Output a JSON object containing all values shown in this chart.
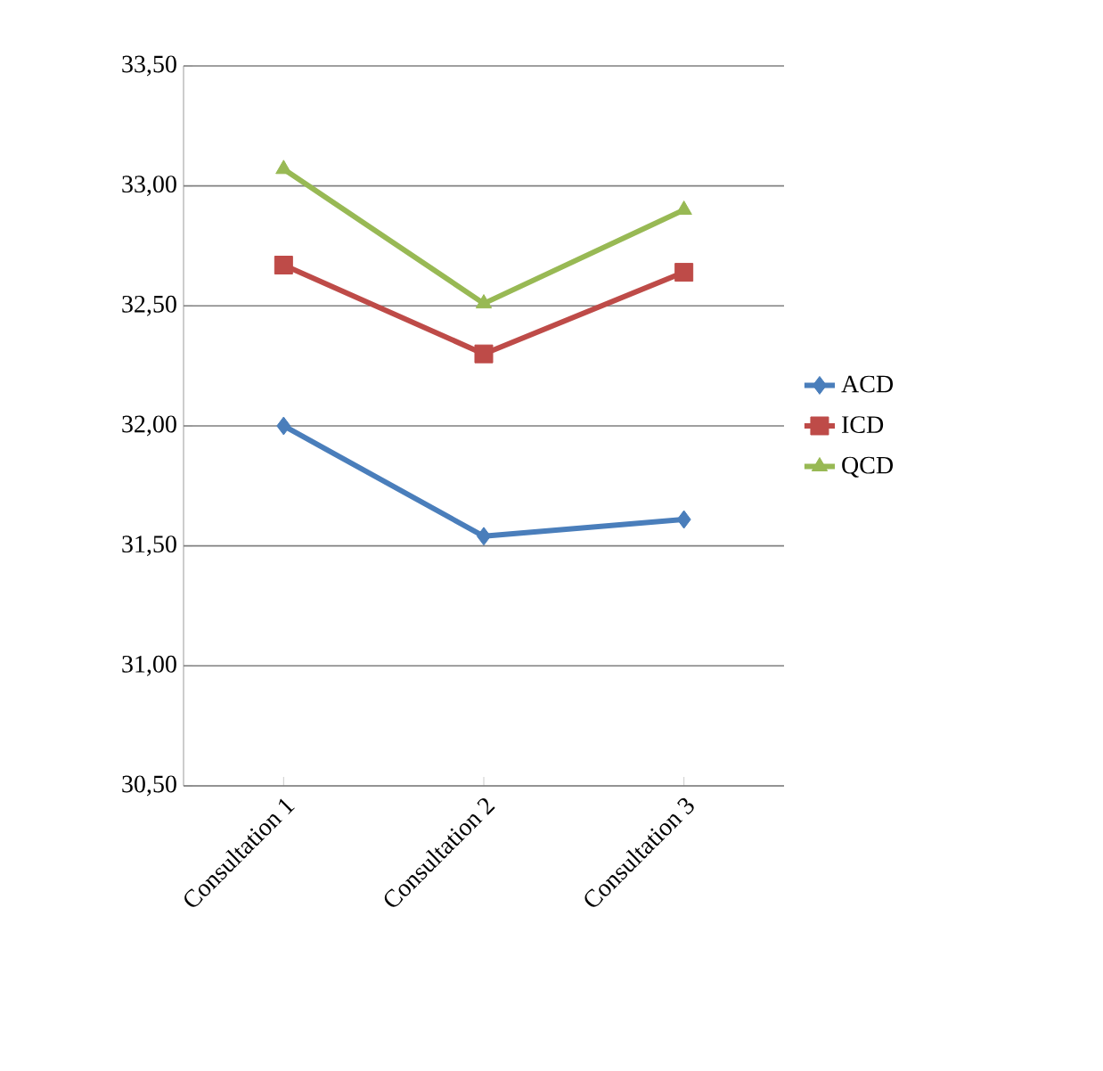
{
  "chart_data": {
    "type": "line",
    "categories": [
      "Consultation 1",
      "Consultation 2",
      "Consultation 3"
    ],
    "series": [
      {
        "name": "ACD",
        "color": "#4a7ebb",
        "marker": "diamond",
        "values": [
          32.0,
          31.54,
          31.61
        ]
      },
      {
        "name": "ICD",
        "color": "#be4b48",
        "marker": "square",
        "values": [
          32.67,
          32.3,
          32.64
        ]
      },
      {
        "name": "QCD",
        "color": "#98b954",
        "marker": "triangle",
        "values": [
          33.07,
          32.51,
          32.9
        ]
      }
    ],
    "ylim": [
      30.5,
      33.5
    ],
    "yticks": [
      {
        "value": 30.5,
        "label": "30,50"
      },
      {
        "value": 31.0,
        "label": "31,00"
      },
      {
        "value": 31.5,
        "label": "31,50"
      },
      {
        "value": 32.0,
        "label": "32,00"
      },
      {
        "value": 32.5,
        "label": "32,50"
      },
      {
        "value": 33.0,
        "label": "33,00"
      },
      {
        "value": 33.5,
        "label": "33,50"
      }
    ],
    "grid": "y",
    "legend": "right"
  }
}
